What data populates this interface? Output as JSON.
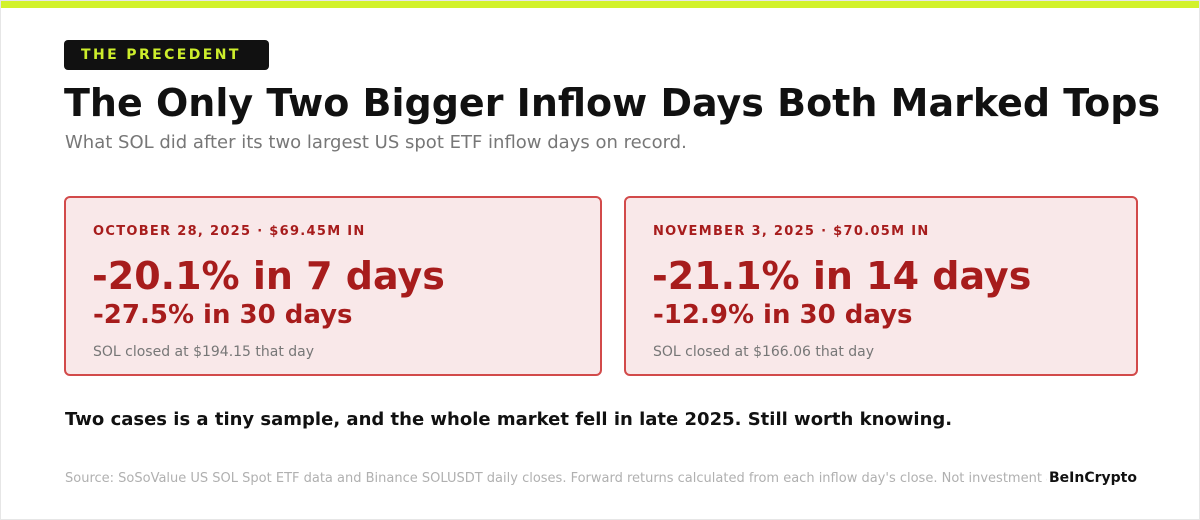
{
  "header": {
    "tag": "THE PRECEDENT",
    "title": "The Only Two Bigger Inflow Days Both Marked Tops",
    "subtitle": "What SOL did after its two largest US spot ETF inflow days on record."
  },
  "cards": [
    {
      "heading": "OCTOBER 28, 2025 · $69.45M IN",
      "primary": "-20.1% in 7 days",
      "secondary": "-27.5% in 30 days",
      "note": "SOL closed at $194.15 that day"
    },
    {
      "heading": "NOVEMBER 3, 2025 · $70.05M IN",
      "primary": "-21.1% in 14 days",
      "secondary": "-12.9% in 30 days",
      "note": "SOL closed at $166.06 that day"
    }
  ],
  "footer": {
    "takeaway": "Two cases is a tiny sample, and the whole market fell in late 2025. Still worth knowing.",
    "source": "Source: SoSoValue US SOL Spot ETF data and Binance SOLUSDT daily closes. Forward returns calculated from each inflow day's close. Not investment advi",
    "brand": "BeInCrypto"
  }
}
